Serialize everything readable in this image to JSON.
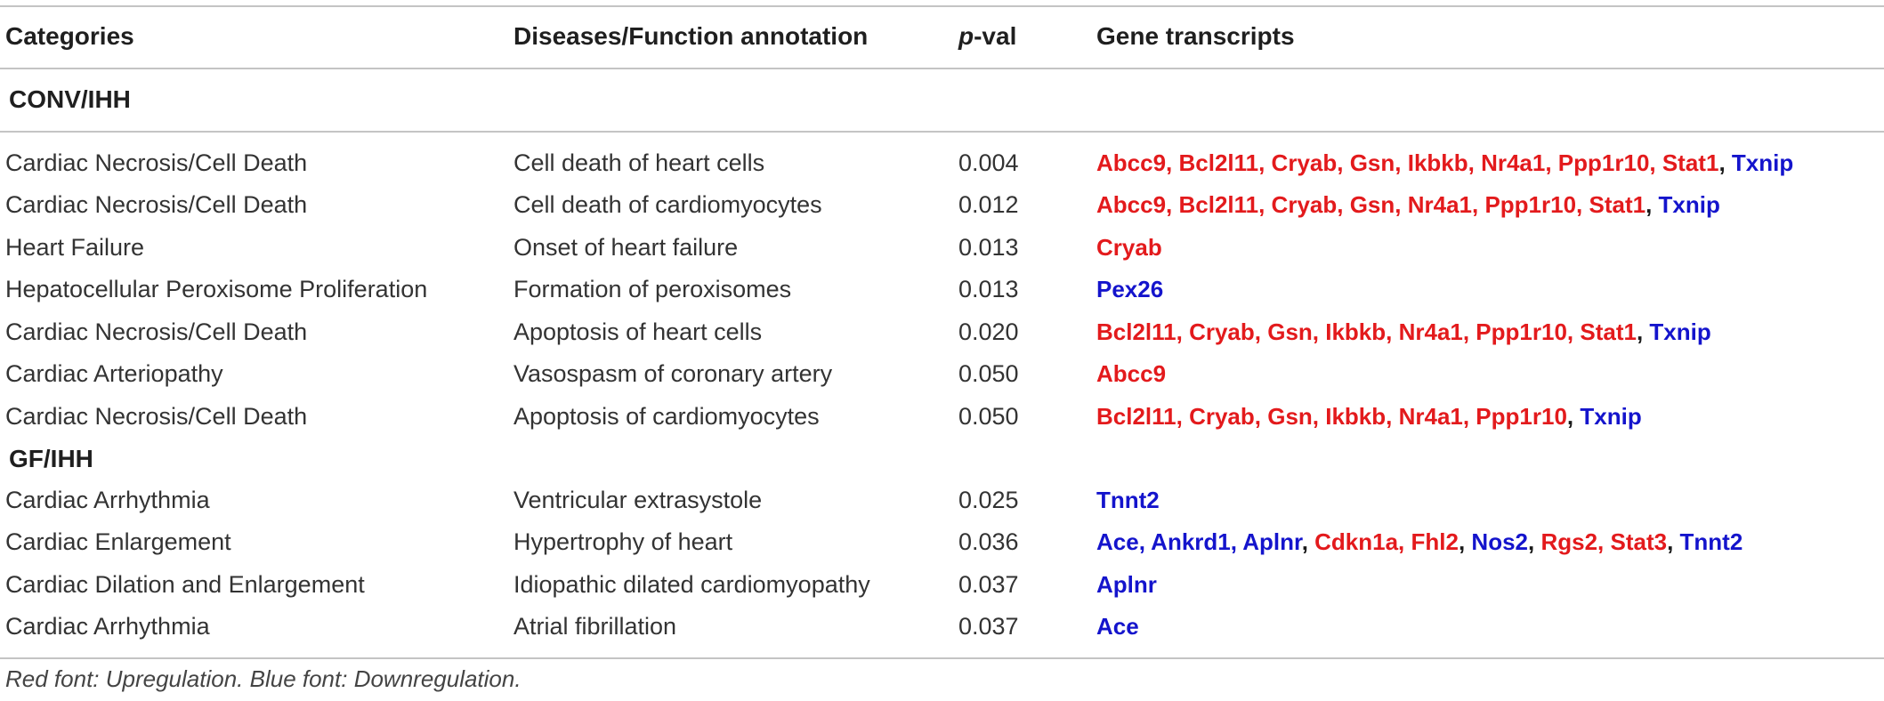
{
  "colors": {
    "up": "#e31a1c",
    "down": "#1414cc",
    "separator": "#1a1a1a",
    "text": "#333333",
    "rule": "#c4c4c4"
  },
  "header": {
    "categories": "Categories",
    "annotation": "Diseases/Function annotation",
    "pval_italic": "p",
    "pval_rest": "-val",
    "genes": "Gene transcripts"
  },
  "sections": [
    {
      "title": "CONV/IHH",
      "rows": [
        {
          "category": "Cardiac Necrosis/Cell Death",
          "annotation": "Cell death of heart cells",
          "pval": "0.004",
          "genes": [
            {
              "text": "Abcc9, Bcl2l11, Cryab, Gsn, Ikbkb, Nr4a1, Ppp1r10, Stat1",
              "reg": "up"
            },
            {
              "text": ", ",
              "reg": "sep"
            },
            {
              "text": "Txnip",
              "reg": "down"
            }
          ]
        },
        {
          "category": "Cardiac Necrosis/Cell Death",
          "annotation": "Cell death of cardiomyocytes",
          "pval": "0.012",
          "genes": [
            {
              "text": "Abcc9, Bcl2l11, Cryab, Gsn, Nr4a1, Ppp1r10, Stat1",
              "reg": "up"
            },
            {
              "text": ", ",
              "reg": "sep"
            },
            {
              "text": "Txnip",
              "reg": "down"
            }
          ]
        },
        {
          "category": "Heart Failure",
          "annotation": "Onset of heart failure",
          "pval": "0.013",
          "genes": [
            {
              "text": "Cryab",
              "reg": "up"
            }
          ]
        },
        {
          "category": "Hepatocellular Peroxisome Proliferation",
          "annotation": "Formation of peroxisomes",
          "pval": "0.013",
          "genes": [
            {
              "text": "Pex26",
              "reg": "down"
            }
          ]
        },
        {
          "category": "Cardiac Necrosis/Cell Death",
          "annotation": "Apoptosis of heart cells",
          "pval": "0.020",
          "genes": [
            {
              "text": "Bcl2l11, Cryab, Gsn, Ikbkb, Nr4a1, Ppp1r10, Stat1",
              "reg": "up"
            },
            {
              "text": ", ",
              "reg": "sep"
            },
            {
              "text": "Txnip",
              "reg": "down"
            }
          ]
        },
        {
          "category": "Cardiac Arteriopathy",
          "annotation": "Vasospasm of coronary artery",
          "pval": "0.050",
          "genes": [
            {
              "text": "Abcc9",
              "reg": "up"
            }
          ]
        },
        {
          "category": "Cardiac Necrosis/Cell Death",
          "annotation": "Apoptosis of cardiomyocytes",
          "pval": "0.050",
          "genes": [
            {
              "text": "Bcl2l11, Cryab, Gsn, Ikbkb, Nr4a1, Ppp1r10",
              "reg": "up"
            },
            {
              "text": ", ",
              "reg": "sep"
            },
            {
              "text": "Txnip",
              "reg": "down"
            }
          ]
        }
      ]
    },
    {
      "title": "GF/IHH",
      "rows": [
        {
          "category": "Cardiac Arrhythmia",
          "annotation": "Ventricular extrasystole",
          "pval": "0.025",
          "genes": [
            {
              "text": "Tnnt2",
              "reg": "down"
            }
          ]
        },
        {
          "category": "Cardiac Enlargement",
          "annotation": "Hypertrophy of heart",
          "pval": "0.036",
          "genes": [
            {
              "text": "Ace, Ankrd1, Aplnr",
              "reg": "down"
            },
            {
              "text": ", ",
              "reg": "sep"
            },
            {
              "text": "Cdkn1a, Fhl2",
              "reg": "up"
            },
            {
              "text": ", ",
              "reg": "sep"
            },
            {
              "text": "Nos2",
              "reg": "down"
            },
            {
              "text": ", ",
              "reg": "sep"
            },
            {
              "text": "Rgs2, Stat3",
              "reg": "up"
            },
            {
              "text": ", ",
              "reg": "sep"
            },
            {
              "text": "Tnnt2",
              "reg": "down"
            }
          ]
        },
        {
          "category": "Cardiac Dilation and Enlargement",
          "annotation": "Idiopathic dilated cardiomyopathy",
          "pval": "0.037",
          "genes": [
            {
              "text": "Aplnr",
              "reg": "down"
            }
          ]
        },
        {
          "category": "Cardiac Arrhythmia",
          "annotation": "Atrial fibrillation",
          "pval": "0.037",
          "genes": [
            {
              "text": "Ace",
              "reg": "down"
            }
          ]
        }
      ]
    }
  ],
  "footnote": "Red font: Upregulation. Blue font: Downregulation."
}
